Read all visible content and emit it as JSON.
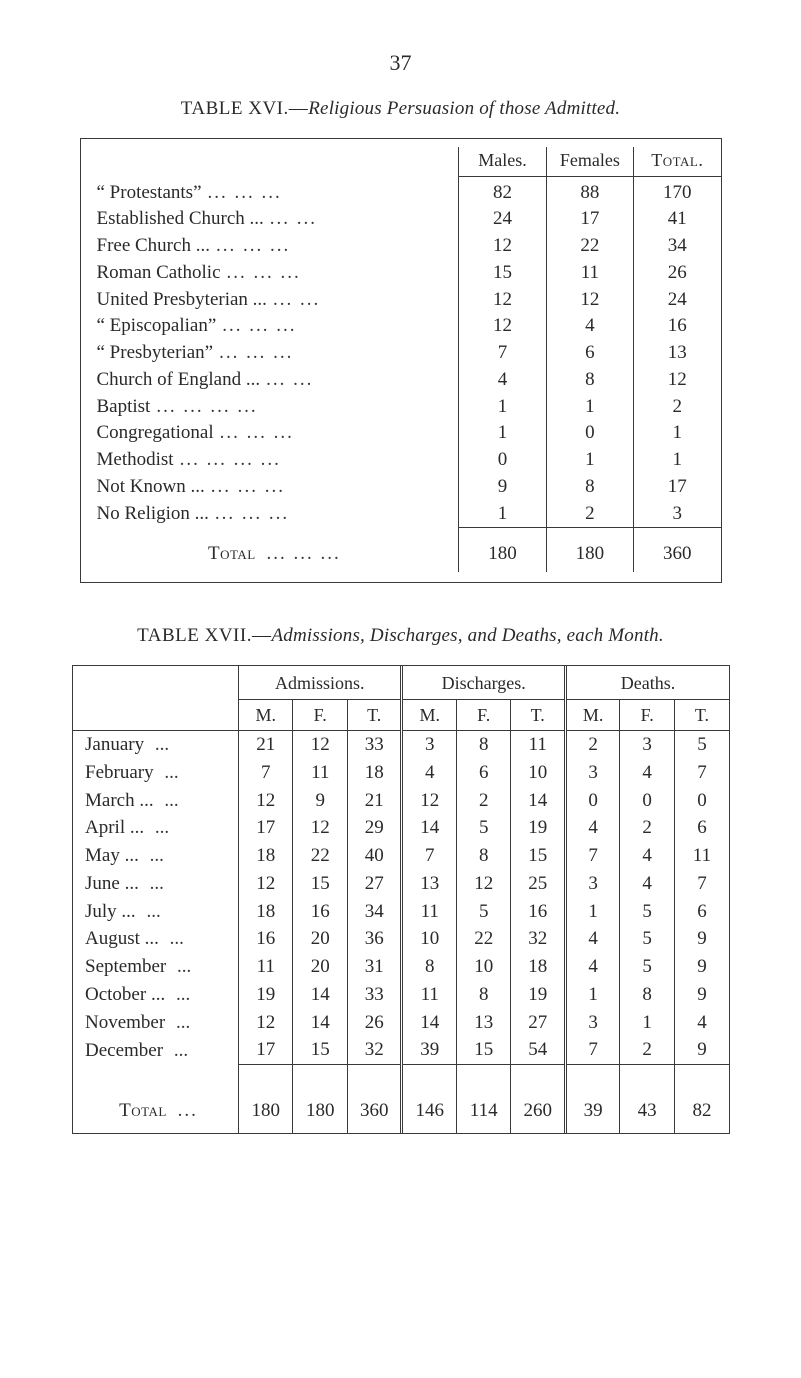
{
  "page_number": "37",
  "colors": {
    "text": "#2a2a2a",
    "rule": "#3a3a3a",
    "background": "#ffffff"
  },
  "typography": {
    "family": "Times New Roman / Old-Style serif",
    "body_size_pt": 14,
    "title_size_pt": 14
  },
  "table16": {
    "title_prefix": "TABLE XVI.—",
    "title_italic": "Religious Persuasion of those Admitted.",
    "headers": {
      "males": "Males.",
      "females": "Females",
      "total": "Total."
    },
    "rows": [
      {
        "label": "“ Protestants”",
        "dots": "...   ...   ...",
        "m": "82",
        "f": "88",
        "t": "170"
      },
      {
        "label": "Established Church ...",
        "dots": "...   ...",
        "m": "24",
        "f": "17",
        "t": "41"
      },
      {
        "label": "Free Church ...",
        "dots": "...   ...   ...",
        "m": "12",
        "f": "22",
        "t": "34"
      },
      {
        "label": "Roman Catholic",
        "dots": "...   ...   ...",
        "m": "15",
        "f": "11",
        "t": "26"
      },
      {
        "label": "United Presbyterian ...",
        "dots": "...   ...",
        "m": "12",
        "f": "12",
        "t": "24"
      },
      {
        "label": "“ Episcopalian”",
        "dots": "...   ...   ...",
        "m": "12",
        "f": "4",
        "t": "16"
      },
      {
        "label": "“ Presbyterian”",
        "dots": "...   ...   ...",
        "m": "7",
        "f": "6",
        "t": "13"
      },
      {
        "label": "Church of England  ...",
        "dots": "...   ...",
        "m": "4",
        "f": "8",
        "t": "12"
      },
      {
        "label": "Baptist",
        "dots": "...   ...   ...   ...",
        "m": "1",
        "f": "1",
        "t": "2"
      },
      {
        "label": "Congregational",
        "dots": "...   ...   ...",
        "m": "1",
        "f": "0",
        "t": "1"
      },
      {
        "label": "Methodist",
        "dots": "...   ...   ...   ...",
        "m": "0",
        "f": "1",
        "t": "1"
      },
      {
        "label": "Not Known  ...",
        "dots": "...   ...   ...",
        "m": "9",
        "f": "8",
        "t": "17"
      },
      {
        "label": "No Religion ...",
        "dots": "...   ...   ...",
        "m": "1",
        "f": "2",
        "t": "3"
      }
    ],
    "total": {
      "label": "Total",
      "dots": "...   ...   ...",
      "m": "180",
      "f": "180",
      "t": "360"
    }
  },
  "table17": {
    "title_prefix": "TABLE XVII.—",
    "title_italic": "Admissions, Discharges, and Deaths, each Month.",
    "group_headers": {
      "adm": "Admissions.",
      "dis": "Discharges.",
      "dth": "Deaths."
    },
    "sub_headers": {
      "m": "M.",
      "f": "F.",
      "t": "T."
    },
    "rows": [
      {
        "month": "January",
        "dots": "...",
        "adm": [
          "21",
          "12",
          "33"
        ],
        "dis": [
          "3",
          "8",
          "11"
        ],
        "dth": [
          "2",
          "3",
          "5"
        ]
      },
      {
        "month": "February",
        "dots": "...",
        "adm": [
          "7",
          "11",
          "18"
        ],
        "dis": [
          "4",
          "6",
          "10"
        ],
        "dth": [
          "3",
          "4",
          "7"
        ]
      },
      {
        "month": "March  ...",
        "dots": "...",
        "adm": [
          "12",
          "9",
          "21"
        ],
        "dis": [
          "12",
          "2",
          "14"
        ],
        "dth": [
          "0",
          "0",
          "0"
        ]
      },
      {
        "month": "April   ...",
        "dots": "...",
        "adm": [
          "17",
          "12",
          "29"
        ],
        "dis": [
          "14",
          "5",
          "19"
        ],
        "dth": [
          "4",
          "2",
          "6"
        ]
      },
      {
        "month": "May     ...",
        "dots": "...",
        "adm": [
          "18",
          "22",
          "40"
        ],
        "dis": [
          "7",
          "8",
          "15"
        ],
        "dth": [
          "7",
          "4",
          "11"
        ]
      },
      {
        "month": "June    ...",
        "dots": "...",
        "adm": [
          "12",
          "15",
          "27"
        ],
        "dis": [
          "13",
          "12",
          "25"
        ],
        "dth": [
          "3",
          "4",
          "7"
        ]
      },
      {
        "month": "July    ...",
        "dots": "...",
        "adm": [
          "18",
          "16",
          "34"
        ],
        "dis": [
          "11",
          "5",
          "16"
        ],
        "dth": [
          "1",
          "5",
          "6"
        ]
      },
      {
        "month": "August ...",
        "dots": "...",
        "adm": [
          "16",
          "20",
          "36"
        ],
        "dis": [
          "10",
          "22",
          "32"
        ],
        "dth": [
          "4",
          "5",
          "9"
        ]
      },
      {
        "month": "September",
        "dots": "...",
        "adm": [
          "11",
          "20",
          "31"
        ],
        "dis": [
          "8",
          "10",
          "18"
        ],
        "dth": [
          "4",
          "5",
          "9"
        ]
      },
      {
        "month": "October ...",
        "dots": "...",
        "adm": [
          "19",
          "14",
          "33"
        ],
        "dis": [
          "11",
          "8",
          "19"
        ],
        "dth": [
          "1",
          "8",
          "9"
        ]
      },
      {
        "month": "November",
        "dots": "...",
        "adm": [
          "12",
          "14",
          "26"
        ],
        "dis": [
          "14",
          "13",
          "27"
        ],
        "dth": [
          "3",
          "1",
          "4"
        ]
      },
      {
        "month": "December",
        "dots": "...",
        "adm": [
          "17",
          "15",
          "32"
        ],
        "dis": [
          "39",
          "15",
          "54"
        ],
        "dth": [
          "7",
          "2",
          "9"
        ]
      }
    ],
    "total": {
      "label": "Total",
      "dots": "...",
      "adm": [
        "180",
        "180",
        "360"
      ],
      "dis": [
        "146",
        "114",
        "260"
      ],
      "dth": [
        "39",
        "43",
        "82"
      ]
    }
  }
}
